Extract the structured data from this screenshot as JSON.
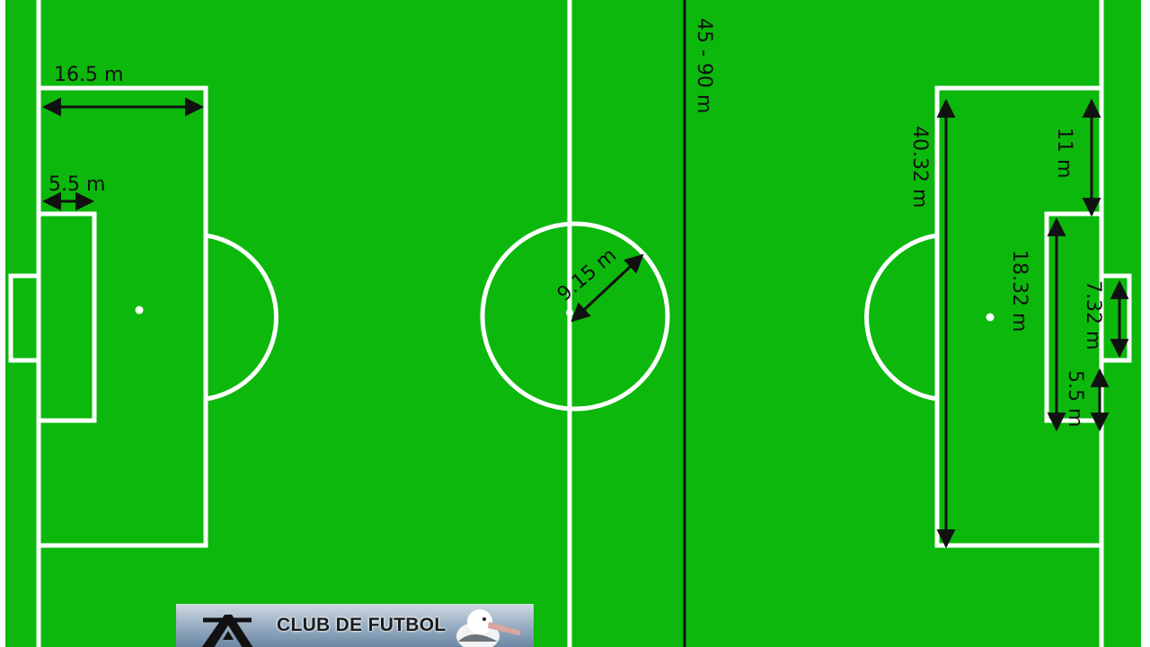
{
  "diagram": {
    "colors": {
      "grass": "#0cb80c",
      "line": "#ffffff",
      "arrow": "#111111"
    },
    "dimensions": {
      "penalty_area_depth": "16.5 m",
      "goal_area_depth_left": "5.5 m",
      "center_circle_radius": "9.15 m",
      "field_width": "45 - 90 m",
      "penalty_area_width": "40.32 m",
      "penalty_spot_distance": "11 m",
      "goal_area_width": "18.32 m",
      "goal_width": "7.32 m",
      "goal_area_depth_right": "5.5 m"
    }
  },
  "banner": {
    "title": "CLUB DE FUTBOL",
    "icons": [
      "club-emblem-icon",
      "albatross-icon"
    ]
  }
}
